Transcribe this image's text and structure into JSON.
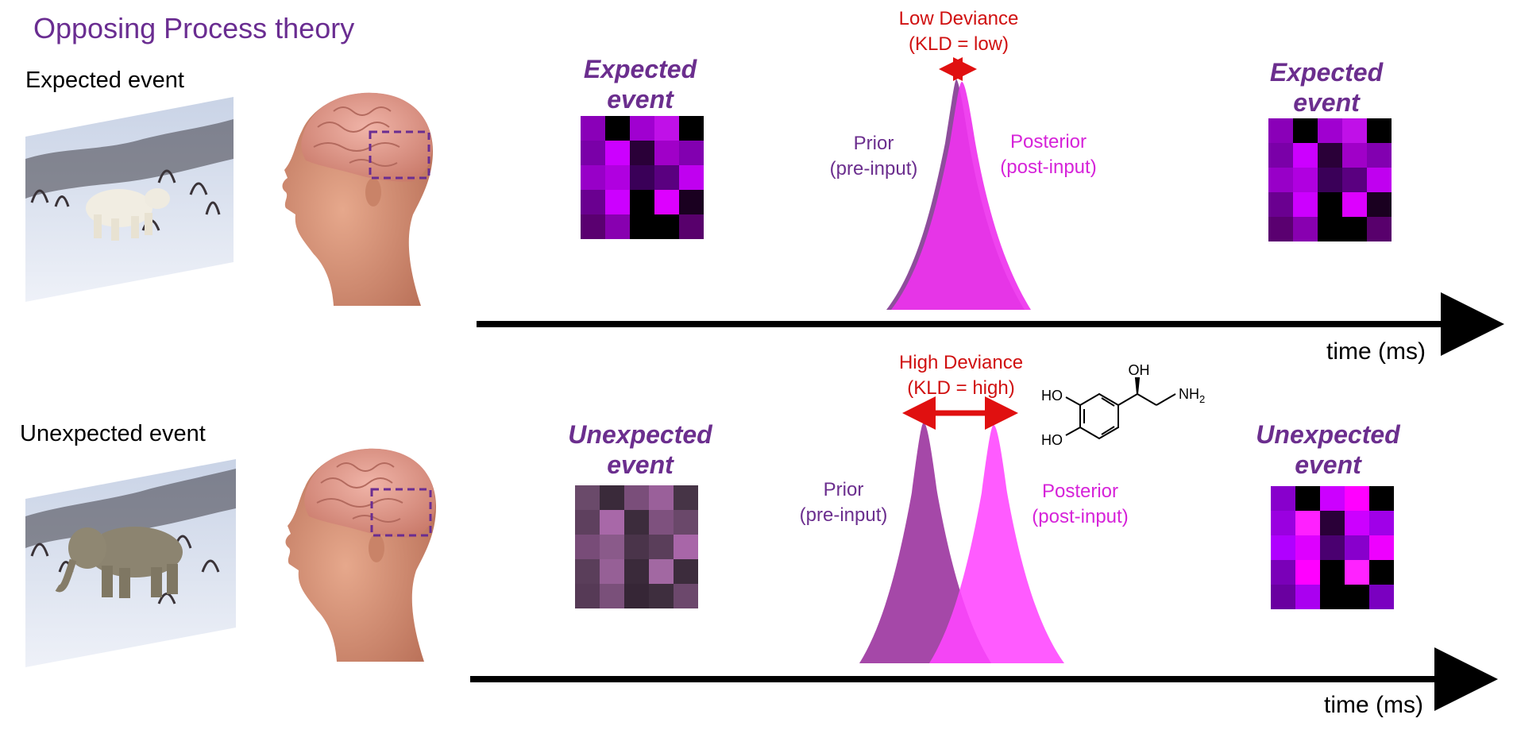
{
  "title": "Opposing Process theory",
  "rows": [
    {
      "event_label": "Expected event",
      "scene_icon": "polar-bear-scene-image",
      "head_icon": "human-head-brain-image",
      "grid_left_label": [
        "Expected",
        "event"
      ],
      "grid_right_label": [
        "Expected",
        "event"
      ],
      "deviance_label": [
        "Low Deviance",
        "(KLD = low)"
      ],
      "prior_label": [
        "Prior",
        "(pre-input)"
      ],
      "posterior_label": [
        "Posterior",
        "(post-input)"
      ],
      "time_label": "time (ms)",
      "grid_left_colors": [
        [
          "#8a00b8",
          "#000000",
          "#a000d0",
          "#c010e8",
          "#000000"
        ],
        [
          "#7a00a8",
          "#cc00ff",
          "#2a0038",
          "#a000c8",
          "#8200b0"
        ],
        [
          "#9800c8",
          "#b000e0",
          "#3a0058",
          "#5a0080",
          "#c000f0"
        ],
        [
          "#6a0090",
          "#cc00ff",
          "#000000",
          "#dd00ff",
          "#1a0020"
        ],
        [
          "#5a0070",
          "#8800b0",
          "#000000",
          "#000000",
          "#58006c"
        ]
      ],
      "grid_right_colors": [
        [
          "#8a00b8",
          "#000000",
          "#a000d0",
          "#c010e8",
          "#000000"
        ],
        [
          "#7a00a8",
          "#cc00ff",
          "#2a0038",
          "#a000c8",
          "#8200b0"
        ],
        [
          "#9800c8",
          "#b000e0",
          "#3a0058",
          "#5a0080",
          "#c000f0"
        ],
        [
          "#6a0090",
          "#cc00ff",
          "#000000",
          "#dd00ff",
          "#1a0020"
        ],
        [
          "#5a0070",
          "#8800b0",
          "#000000",
          "#000000",
          "#58006c"
        ]
      ]
    },
    {
      "event_label": "Unexpected event",
      "scene_icon": "elephant-scene-image",
      "head_icon": "human-head-brain-image",
      "grid_left_label": [
        "Unexpected",
        "event"
      ],
      "grid_right_label": [
        "Unexpected",
        "event"
      ],
      "deviance_label": [
        "High Deviance",
        "(KLD = high)"
      ],
      "prior_label": [
        "Prior",
        "(pre-input)"
      ],
      "posterior_label": [
        "Posterior",
        "(post-input)"
      ],
      "time_label": "time (ms)",
      "chem_labels": {
        "oh_top": "OH",
        "ho_upper": "HO",
        "ho_lower": "HO",
        "nh2": "NH2"
      },
      "grid_left_colors": [
        [
          "#6a4a6a",
          "#3a2a3a",
          "#7a4e7a",
          "#9a609a",
          "#463446"
        ],
        [
          "#5e405e",
          "#a868a8",
          "#3c2c3c",
          "#7e517e",
          "#6a486a"
        ],
        [
          "#784c78",
          "#8a5a8a",
          "#4a344a",
          "#5a3e5a",
          "#a866a8"
        ],
        [
          "#5a3e5a",
          "#966096",
          "#3a2a3a",
          "#a268a2",
          "#3c2c3c"
        ],
        [
          "#563a56",
          "#7a507a",
          "#362636",
          "#3e2e3e",
          "#6c486c"
        ]
      ],
      "grid_right_colors": [
        [
          "#8800cc",
          "#000000",
          "#cc00ff",
          "#ff00ff",
          "#000000"
        ],
        [
          "#9a00e0",
          "#ff20ff",
          "#2a0038",
          "#cc00ff",
          "#a000e8"
        ],
        [
          "#b000ff",
          "#dd00ff",
          "#4a0070",
          "#8800cc",
          "#ee00ff"
        ],
        [
          "#7a00b8",
          "#ff00ff",
          "#000000",
          "#ff22ff",
          "#000000"
        ],
        [
          "#6a00a0",
          "#aa00f0",
          "#000000",
          "#000000",
          "#7a00c0"
        ]
      ]
    }
  ],
  "colors": {
    "title": "#6a2d91",
    "label_purple": "#6b2e8e",
    "posterior_magenta": "#d623d9",
    "deviance_red": "#d01010",
    "prior_fill_low": "#b23cc0",
    "posterior_fill_low": "#ee33ee",
    "prior_fill_high": "#a548a8",
    "posterior_fill_high": "#ff44ff"
  }
}
